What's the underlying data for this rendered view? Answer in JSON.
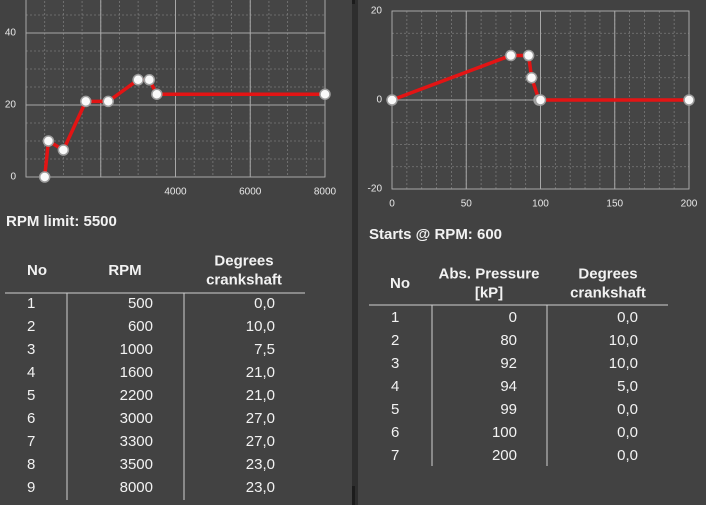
{
  "left": {
    "chart": {
      "type": "line",
      "x": [
        500,
        600,
        1000,
        1600,
        2200,
        3000,
        3300,
        3500,
        8000
      ],
      "values": [
        0,
        10,
        7.5,
        21,
        21,
        27,
        27,
        23,
        23
      ],
      "color": "#e31414",
      "xlim": [
        0,
        8000
      ],
      "xticks": [
        4000,
        6000,
        8000
      ],
      "ylim": [
        0,
        50
      ],
      "yticks": [
        0,
        20,
        40
      ],
      "grid": true
    },
    "caption": "RPM limit: 5500",
    "table": {
      "headers": [
        "No",
        "RPM",
        "Degrees\ncrankshaft"
      ],
      "rows": [
        [
          "1",
          "500",
          "0,0"
        ],
        [
          "2",
          "600",
          "10,0"
        ],
        [
          "3",
          "1000",
          "7,5"
        ],
        [
          "4",
          "1600",
          "21,0"
        ],
        [
          "5",
          "2200",
          "21,0"
        ],
        [
          "6",
          "3000",
          "27,0"
        ],
        [
          "7",
          "3300",
          "27,0"
        ],
        [
          "8",
          "3500",
          "23,0"
        ],
        [
          "9",
          "8000",
          "23,0"
        ]
      ]
    }
  },
  "right": {
    "chart": {
      "type": "line",
      "x": [
        0,
        80,
        92,
        94,
        99,
        100,
        200
      ],
      "values": [
        0,
        10,
        10,
        5,
        0,
        0,
        0
      ],
      "color": "#e31414",
      "xlim": [
        0,
        200
      ],
      "xticks": [
        0,
        50,
        100,
        150,
        200
      ],
      "ylim": [
        -20,
        20
      ],
      "yticks": [
        -20,
        0,
        20
      ],
      "grid": true
    },
    "caption": "Starts @ RPM: 600",
    "table": {
      "headers": [
        "No",
        "Abs. Pressure\n[kP]",
        "Degrees\ncrankshaft"
      ],
      "rows": [
        [
          "1",
          "0",
          "0,0"
        ],
        [
          "2",
          "80",
          "10,0"
        ],
        [
          "3",
          "92",
          "10,0"
        ],
        [
          "4",
          "94",
          "5,0"
        ],
        [
          "5",
          "99",
          "0,0"
        ],
        [
          "6",
          "100",
          "0,0"
        ],
        [
          "7",
          "200",
          "0,0"
        ]
      ]
    }
  }
}
